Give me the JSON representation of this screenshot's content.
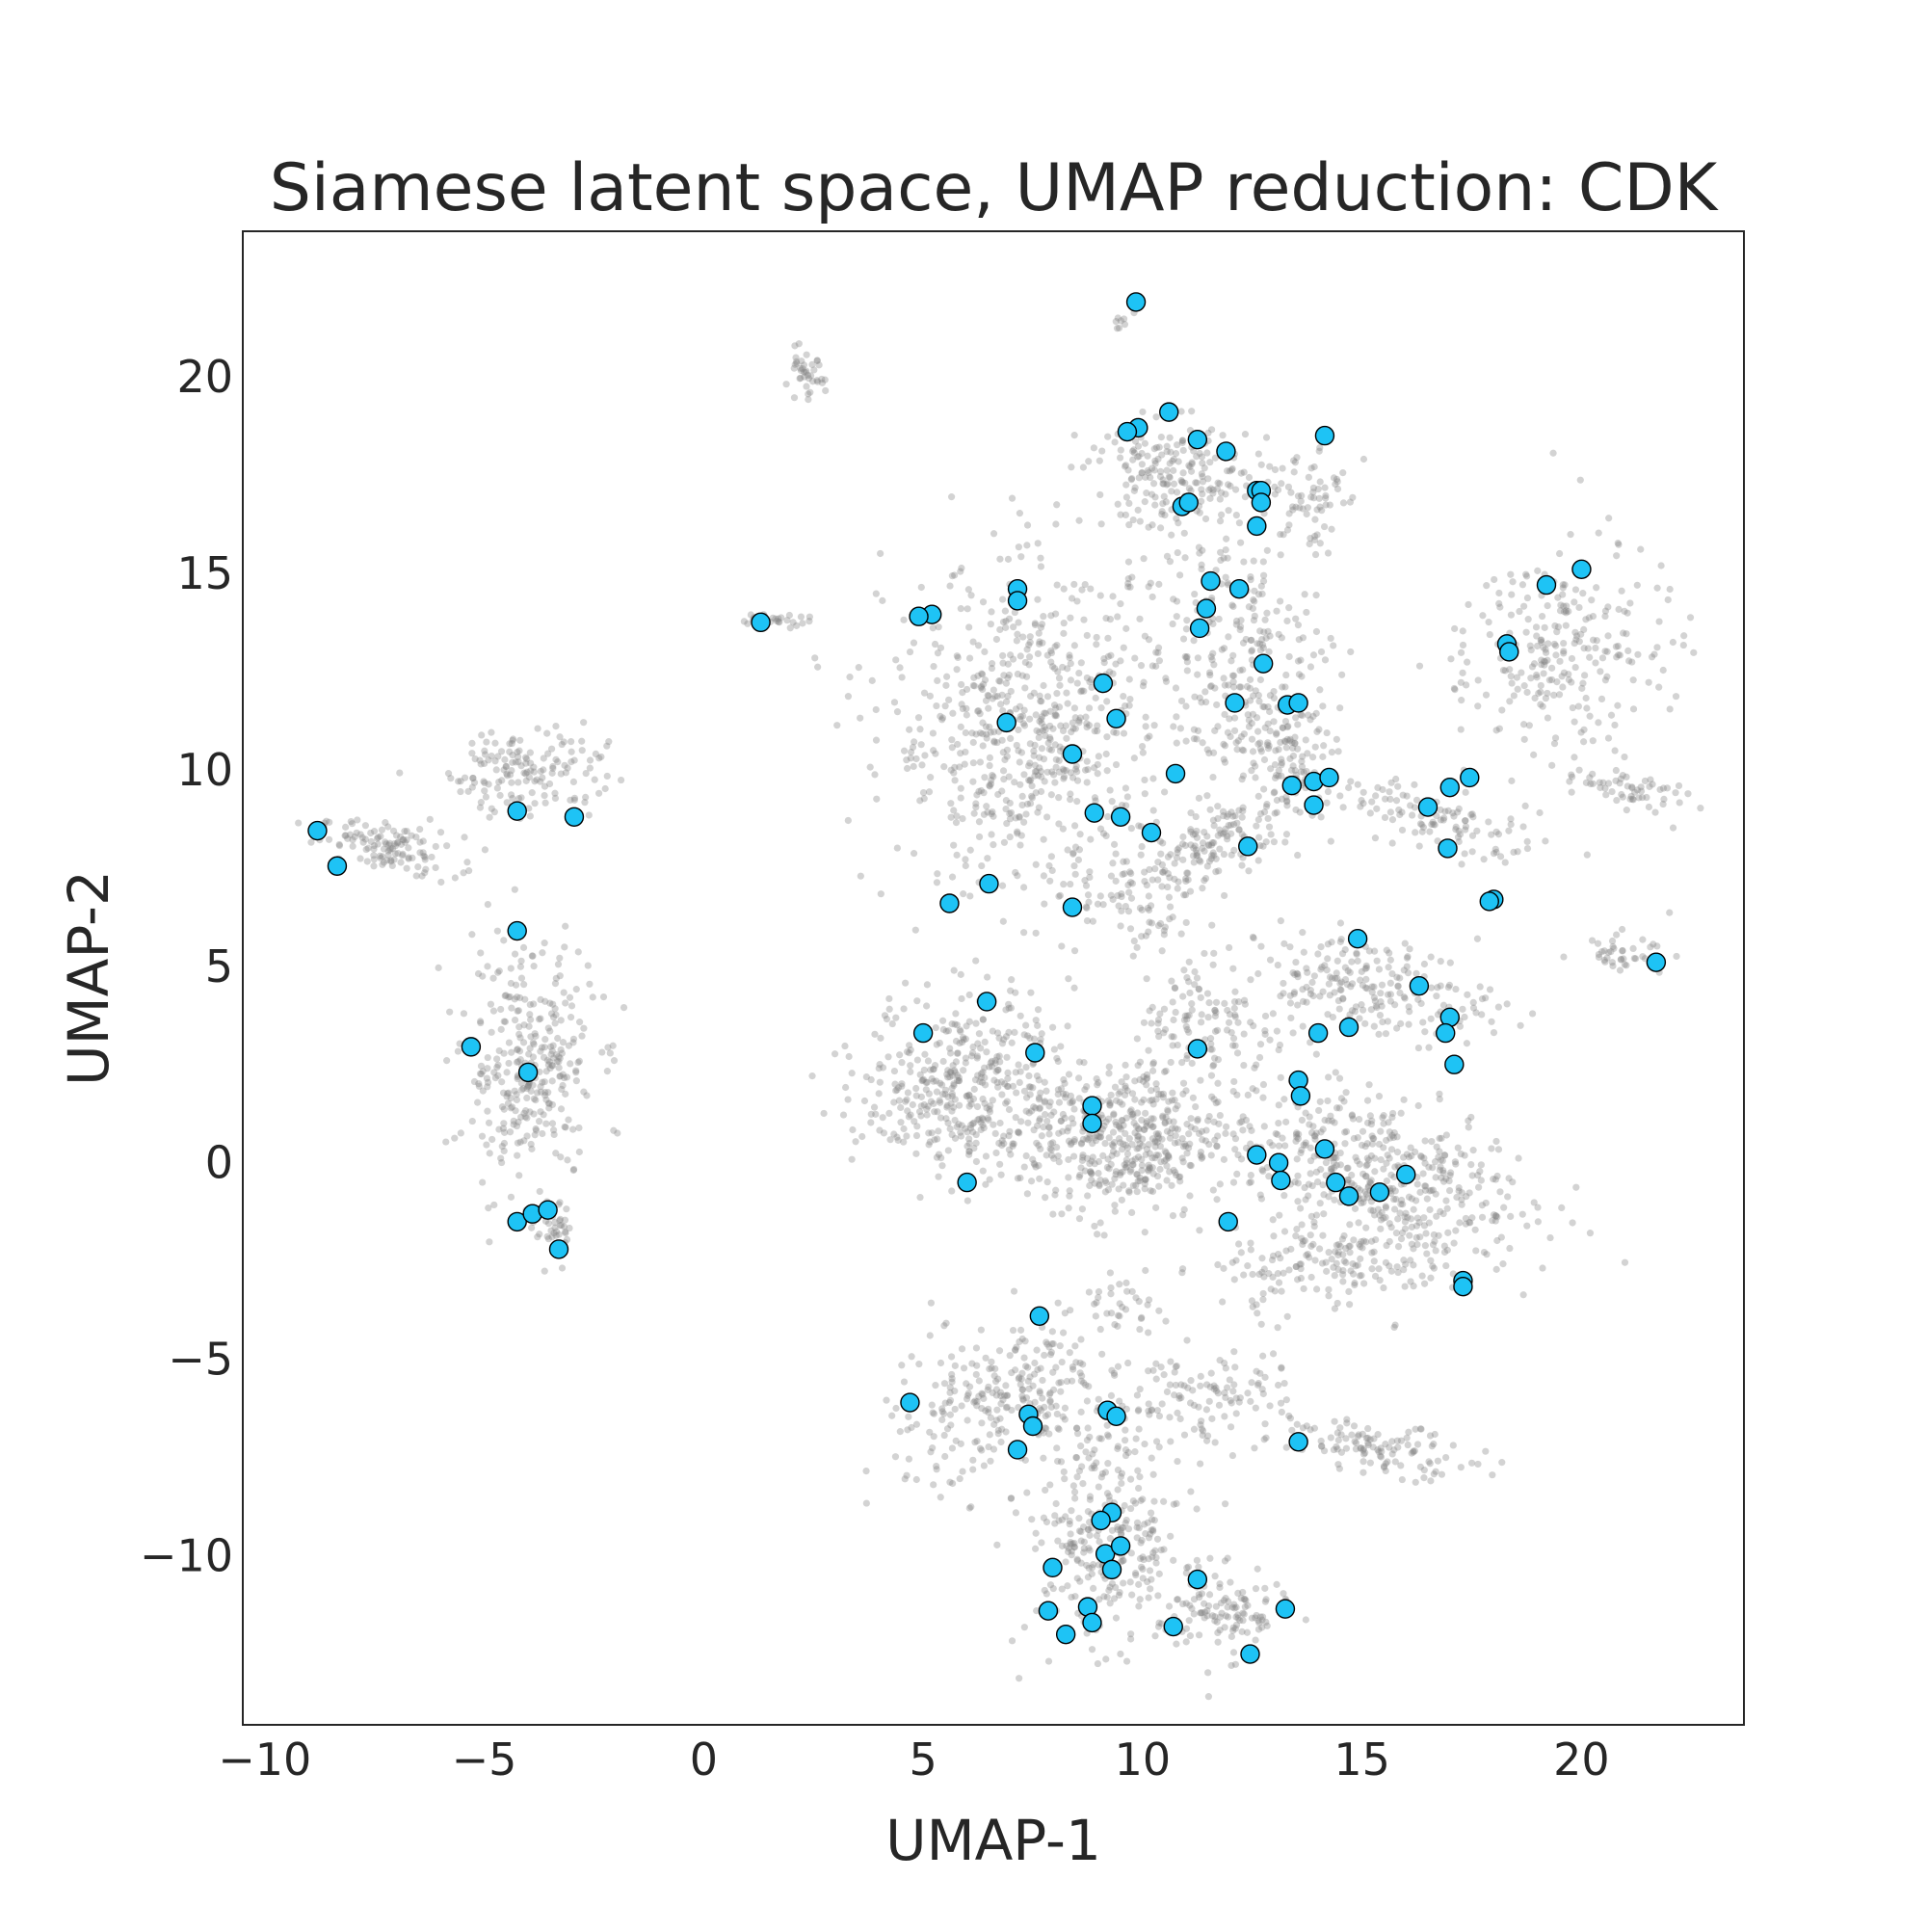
{
  "chart_data": {
    "type": "scatter",
    "title": "Siamese latent space, UMAP reduction: CDK",
    "xlabel": "UMAP-1",
    "ylabel": "UMAP-2",
    "xlim": [
      -10.5,
      23.7
    ],
    "ylim": [
      -14.3,
      23.7
    ],
    "x_ticks": [
      -10,
      -5,
      0,
      5,
      10,
      15,
      20
    ],
    "y_ticks": [
      -10,
      -5,
      0,
      5,
      10,
      15,
      20
    ],
    "x_tick_labels": [
      "−10",
      "−5",
      "0",
      "5",
      "10",
      "15",
      "20"
    ],
    "y_tick_labels": [
      "−10",
      "−5",
      "0",
      "5",
      "10",
      "15",
      "20"
    ],
    "grid": false,
    "colors": {
      "background_points": "#808080",
      "highlight_points": "#1ec3f5",
      "highlight_edge": "#000000",
      "frame": "#262626"
    },
    "background_clusters": [
      {
        "cx": -7.2,
        "cy": 8.0,
        "sx": 1.1,
        "sy": 0.4,
        "n": 120,
        "rot": -10
      },
      {
        "cx": -4.0,
        "cy": 10.0,
        "sx": 1.2,
        "sy": 0.8,
        "n": 150,
        "rot": 0
      },
      {
        "cx": -4.0,
        "cy": 2.5,
        "sx": 1.0,
        "sy": 2.0,
        "n": 320,
        "rot": 0
      },
      {
        "cx": -3.4,
        "cy": -1.8,
        "sx": 0.3,
        "sy": 0.5,
        "n": 40,
        "rot": 0
      },
      {
        "cx": 2.3,
        "cy": 20.0,
        "sx": 0.3,
        "sy": 0.4,
        "n": 40,
        "rot": 0
      },
      {
        "cx": 1.5,
        "cy": 13.8,
        "sx": 0.6,
        "sy": 0.1,
        "n": 30,
        "rot": 0
      },
      {
        "cx": 9.6,
        "cy": 21.4,
        "sx": 0.2,
        "sy": 0.2,
        "n": 8,
        "rot": 0
      },
      {
        "cx": 7.5,
        "cy": 11.0,
        "sx": 2.2,
        "sy": 2.8,
        "n": 650,
        "rot": 0
      },
      {
        "cx": 10.8,
        "cy": 17.5,
        "sx": 1.4,
        "sy": 0.9,
        "n": 200,
        "rot": 0
      },
      {
        "cx": 12.3,
        "cy": 13.0,
        "sx": 1.3,
        "sy": 2.2,
        "n": 250,
        "rot": 10
      },
      {
        "cx": 13.2,
        "cy": 10.3,
        "sx": 0.9,
        "sy": 1.0,
        "n": 120,
        "rot": 0
      },
      {
        "cx": 13.8,
        "cy": 17.0,
        "sx": 0.5,
        "sy": 1.0,
        "n": 60,
        "rot": 0
      },
      {
        "cx": 19.5,
        "cy": 13.0,
        "sx": 1.5,
        "sy": 1.8,
        "n": 250,
        "rot": -30
      },
      {
        "cx": 16.5,
        "cy": 8.8,
        "sx": 1.8,
        "sy": 0.5,
        "n": 110,
        "rot": -20
      },
      {
        "cx": 21.0,
        "cy": 9.5,
        "sx": 1.0,
        "sy": 0.4,
        "n": 60,
        "rot": -20
      },
      {
        "cx": 21.0,
        "cy": 5.4,
        "sx": 0.7,
        "sy": 0.3,
        "n": 40,
        "rot": 0
      },
      {
        "cx": 11.5,
        "cy": 8.0,
        "sx": 1.5,
        "sy": 0.6,
        "n": 140,
        "rot": 25
      },
      {
        "cx": 9.8,
        "cy": 6.5,
        "sx": 0.8,
        "sy": 0.7,
        "n": 60,
        "rot": 0
      },
      {
        "cx": 6.0,
        "cy": 2.0,
        "sx": 1.6,
        "sy": 1.5,
        "n": 420,
        "rot": 0
      },
      {
        "cx": 9.5,
        "cy": 0.5,
        "sx": 1.4,
        "sy": 1.3,
        "n": 420,
        "rot": 0
      },
      {
        "cx": 11.5,
        "cy": 3.5,
        "sx": 1.2,
        "sy": 1.2,
        "n": 120,
        "rot": 0
      },
      {
        "cx": 15.0,
        "cy": 4.5,
        "sx": 2.0,
        "sy": 0.8,
        "n": 220,
        "rot": -10
      },
      {
        "cx": 15.0,
        "cy": 0.0,
        "sx": 2.6,
        "sy": 1.2,
        "n": 450,
        "rot": -15
      },
      {
        "cx": 14.5,
        "cy": -2.5,
        "sx": 2.0,
        "sy": 0.8,
        "n": 200,
        "rot": 10
      },
      {
        "cx": 7.0,
        "cy": -6.0,
        "sx": 2.0,
        "sy": 1.2,
        "n": 280,
        "rot": 25
      },
      {
        "cx": 9.2,
        "cy": -9.5,
        "sx": 1.2,
        "sy": 1.8,
        "n": 300,
        "rot": 0
      },
      {
        "cx": 11.8,
        "cy": -11.5,
        "sx": 1.0,
        "sy": 0.7,
        "n": 120,
        "rot": 0
      },
      {
        "cx": 11.5,
        "cy": -6.0,
        "sx": 1.3,
        "sy": 0.8,
        "n": 110,
        "rot": 0
      },
      {
        "cx": 15.5,
        "cy": -7.3,
        "sx": 1.4,
        "sy": 0.4,
        "n": 110,
        "rot": -10
      },
      {
        "cx": 9.5,
        "cy": -3.5,
        "sx": 0.6,
        "sy": 0.5,
        "n": 30,
        "rot": 0
      }
    ],
    "highlighted_points": [
      {
        "x": 9.85,
        "y": 21.9
      },
      {
        "x": 10.6,
        "y": 19.1
      },
      {
        "x": 9.9,
        "y": 18.7
      },
      {
        "x": 9.65,
        "y": 18.6
      },
      {
        "x": 11.25,
        "y": 18.4
      },
      {
        "x": 11.9,
        "y": 18.1
      },
      {
        "x": 14.15,
        "y": 18.5
      },
      {
        "x": 12.6,
        "y": 17.1
      },
      {
        "x": 12.7,
        "y": 17.1
      },
      {
        "x": 12.7,
        "y": 16.8
      },
      {
        "x": 10.9,
        "y": 16.7
      },
      {
        "x": 11.05,
        "y": 16.8
      },
      {
        "x": 12.6,
        "y": 16.2
      },
      {
        "x": 7.15,
        "y": 14.6
      },
      {
        "x": 7.15,
        "y": 14.3
      },
      {
        "x": 5.2,
        "y": 13.95
      },
      {
        "x": 4.9,
        "y": 13.9
      },
      {
        "x": 1.3,
        "y": 13.75
      },
      {
        "x": 11.55,
        "y": 14.8
      },
      {
        "x": 11.45,
        "y": 14.1
      },
      {
        "x": 11.3,
        "y": 13.6
      },
      {
        "x": 12.2,
        "y": 14.6
      },
      {
        "x": 12.75,
        "y": 12.7
      },
      {
        "x": 20.0,
        "y": 15.1
      },
      {
        "x": 19.2,
        "y": 14.7
      },
      {
        "x": 18.3,
        "y": 13.2
      },
      {
        "x": 18.35,
        "y": 13.0
      },
      {
        "x": 9.1,
        "y": 12.2
      },
      {
        "x": 9.4,
        "y": 11.3
      },
      {
        "x": 6.9,
        "y": 11.2
      },
      {
        "x": 12.1,
        "y": 11.7
      },
      {
        "x": 13.3,
        "y": 11.65
      },
      {
        "x": 13.55,
        "y": 11.7
      },
      {
        "x": 8.4,
        "y": 10.4
      },
      {
        "x": 10.75,
        "y": 9.9
      },
      {
        "x": 13.4,
        "y": 9.6
      },
      {
        "x": 13.9,
        "y": 9.7
      },
      {
        "x": 14.25,
        "y": 9.8
      },
      {
        "x": 13.9,
        "y": 9.1
      },
      {
        "x": 17.0,
        "y": 9.55
      },
      {
        "x": 17.45,
        "y": 9.8
      },
      {
        "x": 16.5,
        "y": 9.05
      },
      {
        "x": 8.9,
        "y": 8.9
      },
      {
        "x": 9.5,
        "y": 8.8
      },
      {
        "x": 10.2,
        "y": 8.4
      },
      {
        "x": 12.4,
        "y": 8.05
      },
      {
        "x": 16.95,
        "y": 8.0
      },
      {
        "x": 18.0,
        "y": 6.7
      },
      {
        "x": 17.9,
        "y": 6.65
      },
      {
        "x": 6.5,
        "y": 7.1
      },
      {
        "x": 5.6,
        "y": 6.6
      },
      {
        "x": 8.4,
        "y": 6.5
      },
      {
        "x": 14.9,
        "y": 5.7
      },
      {
        "x": 21.7,
        "y": 5.1
      },
      {
        "x": -8.8,
        "y": 8.45
      },
      {
        "x": -8.35,
        "y": 7.55
      },
      {
        "x": -4.25,
        "y": 8.95
      },
      {
        "x": -2.95,
        "y": 8.8
      },
      {
        "x": -4.25,
        "y": 5.9
      },
      {
        "x": -5.3,
        "y": 2.95
      },
      {
        "x": -4.0,
        "y": 2.3
      },
      {
        "x": -4.25,
        "y": -1.5
      },
      {
        "x": -3.9,
        "y": -1.3
      },
      {
        "x": -3.55,
        "y": -1.2
      },
      {
        "x": -3.3,
        "y": -2.2
      },
      {
        "x": 6.45,
        "y": 4.1
      },
      {
        "x": 5.0,
        "y": 3.3
      },
      {
        "x": 7.55,
        "y": 2.8
      },
      {
        "x": 11.25,
        "y": 2.9
      },
      {
        "x": 16.3,
        "y": 4.5
      },
      {
        "x": 14.0,
        "y": 3.3
      },
      {
        "x": 14.7,
        "y": 3.45
      },
      {
        "x": 17.0,
        "y": 3.7
      },
      {
        "x": 16.9,
        "y": 3.3
      },
      {
        "x": 17.1,
        "y": 2.5
      },
      {
        "x": 13.55,
        "y": 2.1
      },
      {
        "x": 13.6,
        "y": 1.7
      },
      {
        "x": 8.85,
        "y": 1.45
      },
      {
        "x": 8.85,
        "y": 1.0
      },
      {
        "x": 6.0,
        "y": -0.5
      },
      {
        "x": 12.6,
        "y": 0.2
      },
      {
        "x": 13.1,
        "y": 0.0
      },
      {
        "x": 13.15,
        "y": -0.45
      },
      {
        "x": 14.15,
        "y": 0.35
      },
      {
        "x": 14.4,
        "y": -0.5
      },
      {
        "x": 14.7,
        "y": -0.85
      },
      {
        "x": 15.4,
        "y": -0.75
      },
      {
        "x": 16.0,
        "y": -0.3
      },
      {
        "x": 11.95,
        "y": -1.5
      },
      {
        "x": 17.3,
        "y": -3.0
      },
      {
        "x": 17.3,
        "y": -3.15
      },
      {
        "x": 7.65,
        "y": -3.9
      },
      {
        "x": 4.7,
        "y": -6.1
      },
      {
        "x": 7.4,
        "y": -6.4
      },
      {
        "x": 7.5,
        "y": -6.7
      },
      {
        "x": 7.15,
        "y": -7.3
      },
      {
        "x": 9.2,
        "y": -6.3
      },
      {
        "x": 9.4,
        "y": -6.45
      },
      {
        "x": 13.55,
        "y": -7.1
      },
      {
        "x": 9.3,
        "y": -8.9
      },
      {
        "x": 9.05,
        "y": -9.1
      },
      {
        "x": 9.15,
        "y": -9.95
      },
      {
        "x": 9.5,
        "y": -9.75
      },
      {
        "x": 9.3,
        "y": -10.35
      },
      {
        "x": 7.95,
        "y": -10.3
      },
      {
        "x": 11.25,
        "y": -10.6
      },
      {
        "x": 7.85,
        "y": -11.4
      },
      {
        "x": 8.75,
        "y": -11.3
      },
      {
        "x": 8.85,
        "y": -11.7
      },
      {
        "x": 8.25,
        "y": -12.0
      },
      {
        "x": 10.7,
        "y": -11.8
      },
      {
        "x": 13.25,
        "y": -11.35
      },
      {
        "x": 12.45,
        "y": -12.5
      }
    ]
  }
}
